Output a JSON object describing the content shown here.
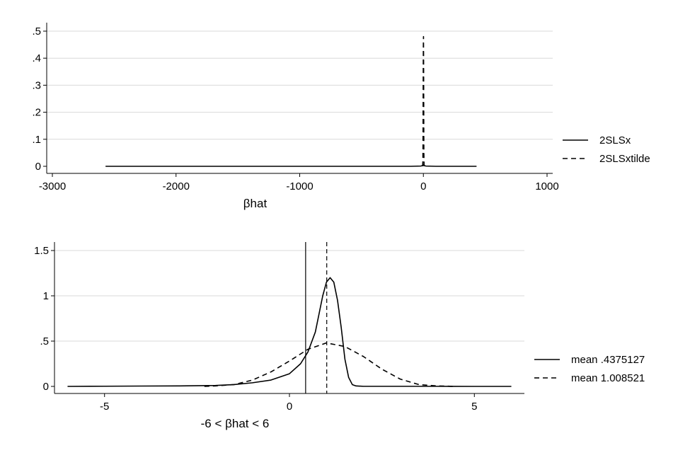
{
  "chart_data": [
    {
      "type": "line",
      "subtype": "kernel-density",
      "xlabel": "βhat",
      "ylabel": "",
      "xlim": [
        -3000,
        1000
      ],
      "ylim": [
        0,
        0.5
      ],
      "x_ticks": [
        -3000,
        -2000,
        -1000,
        0,
        1000
      ],
      "x_tick_labels": [
        "-3000",
        "-2000",
        "-1000",
        "0",
        "1000"
      ],
      "y_ticks": [
        0,
        0.1,
        0.2,
        0.3,
        0.4,
        0.5
      ],
      "y_tick_labels": [
        "0",
        ".1",
        ".2",
        ".3",
        ".4",
        ".5"
      ],
      "grid": "horizontal",
      "legend_position": "right",
      "series": [
        {
          "name": "2SLSx",
          "style": "solid",
          "x": [
            -2570,
            -2000,
            -1500,
            -1000,
            -500,
            -100,
            -20,
            -5,
            0,
            5,
            20,
            100,
            300,
            430
          ],
          "y": [
            0,
            0,
            0,
            0,
            0,
            0,
            0.001,
            0.003,
            0.006,
            0.003,
            0.001,
            0,
            0,
            0
          ]
        },
        {
          "name": "2SLSxtilde",
          "style": "dashed",
          "x": [
            -6,
            -4,
            -3,
            -2,
            -1,
            0,
            1,
            2,
            3,
            4,
            6
          ],
          "y": [
            0,
            0.02,
            0.08,
            0.22,
            0.38,
            0.46,
            0.48,
            0.38,
            0.22,
            0.05,
            0
          ]
        }
      ]
    },
    {
      "type": "line",
      "subtype": "kernel-density",
      "xlabel": "-6 < βhat < 6",
      "ylabel": "",
      "xlim": [
        -6.2,
        6.2
      ],
      "ylim": [
        0,
        1.5
      ],
      "x_ticks": [
        -5,
        0,
        5
      ],
      "x_tick_labels": [
        "-5",
        "0",
        "5"
      ],
      "y_ticks": [
        0,
        0.5,
        1,
        1.5
      ],
      "y_tick_labels": [
        "0",
        ".5",
        "1",
        "1.5"
      ],
      "grid": "horizontal",
      "legend_position": "right",
      "reference_lines": [
        {
          "x": 0.4375127,
          "style": "solid"
        },
        {
          "x": 1.008521,
          "style": "dashed"
        }
      ],
      "series": [
        {
          "name": "mean .4375127",
          "style": "solid",
          "x": [
            -6,
            -5,
            -4,
            -3,
            -2,
            -1.5,
            -1,
            -0.5,
            0,
            0.3,
            0.5,
            0.7,
            0.8,
            0.9,
            1.0,
            1.1,
            1.2,
            1.3,
            1.4,
            1.5,
            1.6,
            1.7,
            1.8,
            2,
            3,
            4,
            5,
            6
          ],
          "y": [
            0,
            0.002,
            0.004,
            0.005,
            0.01,
            0.02,
            0.04,
            0.07,
            0.14,
            0.25,
            0.38,
            0.6,
            0.8,
            1.0,
            1.15,
            1.2,
            1.15,
            0.95,
            0.65,
            0.3,
            0.1,
            0.02,
            0.005,
            0.001,
            0.001,
            0.001,
            0,
            0
          ]
        },
        {
          "name": "mean 1.008521",
          "style": "dashed",
          "x": [
            -2.3,
            -2,
            -1.5,
            -1,
            -0.5,
            0,
            0.5,
            1.0,
            1.5,
            2,
            2.5,
            3,
            3.5,
            4,
            4.5
          ],
          "y": [
            0,
            0.005,
            0.02,
            0.07,
            0.16,
            0.28,
            0.41,
            0.48,
            0.44,
            0.33,
            0.19,
            0.08,
            0.02,
            0.005,
            0
          ]
        }
      ]
    }
  ]
}
